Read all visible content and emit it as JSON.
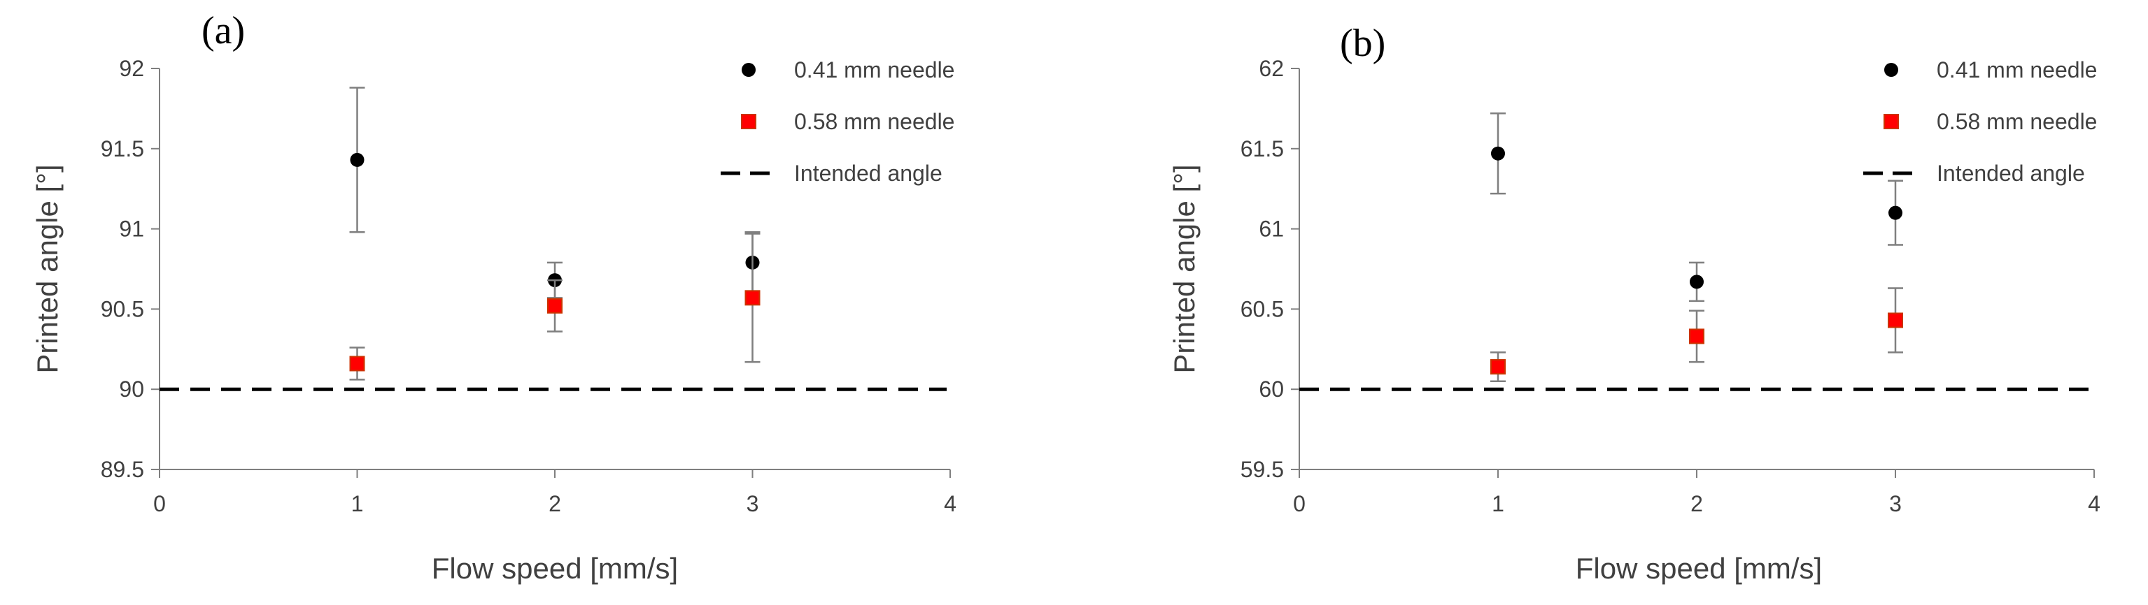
{
  "chart_data": [
    {
      "type": "scatter",
      "panel_label": "(a)",
      "xlabel": "Flow speed [mm/s]",
      "ylabel": "Printed angle [°]",
      "xlim": [
        0,
        4
      ],
      "ylim": [
        89.5,
        92
      ],
      "x_ticks": [
        "0",
        "1",
        "2",
        "3",
        "4"
      ],
      "y_ticks": [
        "89.5",
        "90",
        "90.5",
        "91",
        "91.5",
        "92"
      ],
      "grid": false,
      "legend_position": "top-right",
      "series": [
        {
          "name": "0.41 mm needle",
          "marker": "circle",
          "color": "#000000",
          "x": [
            1,
            2,
            3
          ],
          "y": [
            91.43,
            90.68,
            90.79
          ],
          "error": [
            0.45,
            0.11,
            0.19
          ]
        },
        {
          "name": "0.58 mm needle",
          "marker": "square",
          "color": "#ff0000",
          "x": [
            1,
            2,
            3
          ],
          "y": [
            90.16,
            90.52,
            90.57
          ],
          "error": [
            0.1,
            0.16,
            0.4
          ]
        },
        {
          "name": "Intended angle",
          "marker": "dashed-line",
          "color": "#000000",
          "y_constant": 90
        }
      ]
    },
    {
      "type": "scatter",
      "panel_label": "(b)",
      "xlabel": "Flow speed [mm/s]",
      "ylabel": "Printed angle [°]",
      "xlim": [
        0,
        4
      ],
      "ylim": [
        59.5,
        62
      ],
      "x_ticks": [
        "0",
        "1",
        "2",
        "3",
        "4"
      ],
      "y_ticks": [
        "59.5",
        "60",
        "60.5",
        "61",
        "61.5",
        "62"
      ],
      "grid": false,
      "legend_position": "top-right",
      "series": [
        {
          "name": "0.41 mm needle",
          "marker": "circle",
          "color": "#000000",
          "x": [
            1,
            2,
            3
          ],
          "y": [
            61.47,
            60.67,
            61.1
          ],
          "error": [
            0.25,
            0.12,
            0.2
          ]
        },
        {
          "name": "0.58 mm needle",
          "marker": "square",
          "color": "#ff0000",
          "x": [
            1,
            2,
            3
          ],
          "y": [
            60.14,
            60.33,
            60.43
          ],
          "error": [
            0.09,
            0.16,
            0.2
          ]
        },
        {
          "name": "Intended angle",
          "marker": "dashed-line",
          "color": "#000000",
          "y_constant": 60
        }
      ]
    }
  ]
}
